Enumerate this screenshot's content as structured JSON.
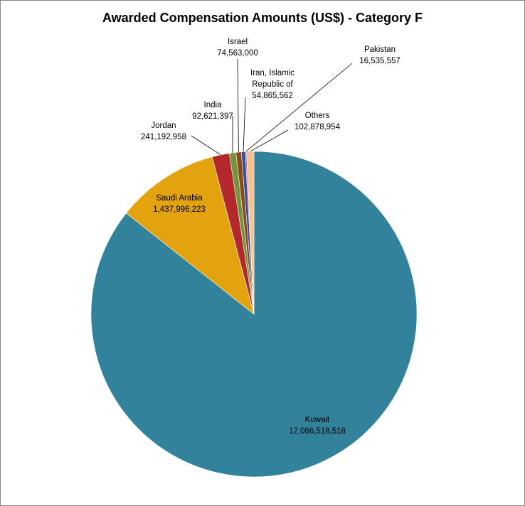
{
  "chart_data": {
    "type": "pie",
    "title": "Awarded Compensation  Amounts (US$) - Category F",
    "categories": [
      "Kuwait",
      "Saudi Arabia",
      "Jordan",
      "India",
      "Israel",
      "Iran, Islamic Republic of",
      "Pakistan",
      "Others"
    ],
    "values": [
      12066518518,
      1437996223,
      241192958,
      92621397,
      74563000,
      54865562,
      16535557,
      102878954
    ],
    "value_labels": [
      "12,066,518,518",
      "1,437,996,223",
      "241,192,958",
      "92,621,397",
      "74,563,000",
      "54,865,562",
      "16,535,557",
      "102,878,954"
    ],
    "colors": [
      "#31829a",
      "#e3a30e",
      "#b3292b",
      "#77933c",
      "#8a4b1c",
      "#3c4f8f",
      "#7e6aa8",
      "#f9c08f"
    ]
  }
}
